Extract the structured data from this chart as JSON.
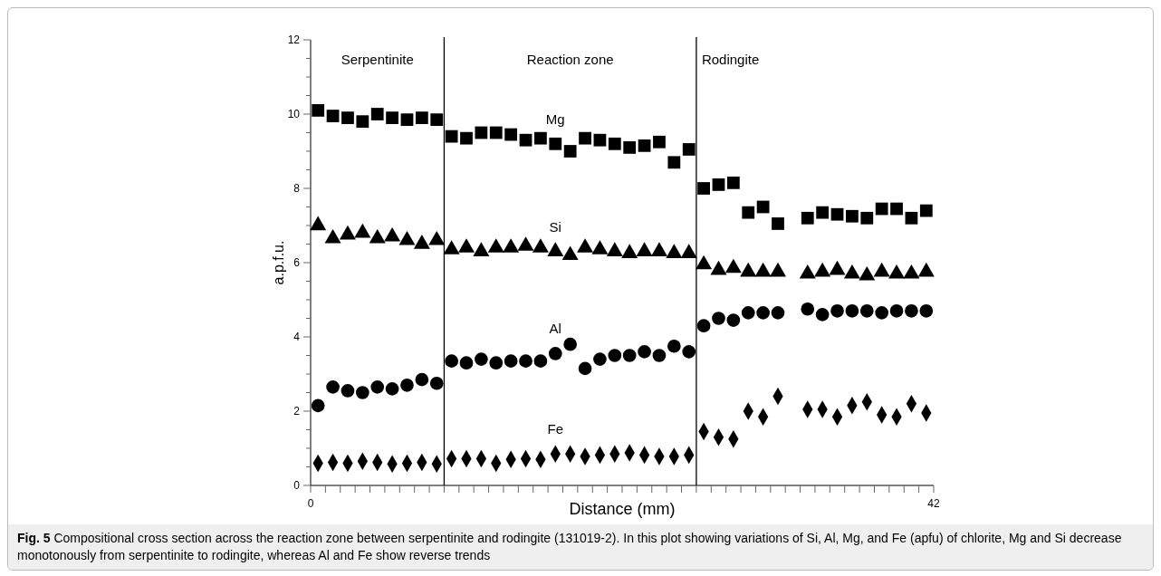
{
  "chart_data": {
    "type": "scatter",
    "xlabel": "Distance (mm)",
    "ylabel": "a.p.f.u.",
    "x": [
      0.5,
      1.5,
      2.5,
      3.5,
      4.5,
      5.5,
      6.5,
      7.5,
      8.5,
      9.5,
      10.5,
      11.5,
      12.5,
      13.5,
      14.5,
      15.5,
      16.5,
      17.5,
      18.5,
      19.5,
      20.5,
      21.5,
      22.5,
      23.5,
      24.5,
      25.5,
      26.5,
      27.5,
      28.5,
      29.5,
      30.5,
      31.5,
      33.5,
      34.5,
      35.5,
      36.5,
      37.5,
      38.5,
      39.5,
      40.5,
      41.5
    ],
    "xlim": [
      0,
      42
    ],
    "xticks": [
      0,
      {
        "value": 1,
        "label": null
      },
      {
        "value": 2,
        "label": null
      },
      {
        "value": 3,
        "label": null
      },
      {
        "value": 4,
        "label": null
      },
      {
        "value": 5,
        "label": null
      },
      {
        "value": 6,
        "label": null
      },
      {
        "value": 7,
        "label": null
      },
      {
        "value": 8,
        "label": null
      },
      {
        "value": 9,
        "label": null
      },
      {
        "value": 10,
        "label": null
      },
      {
        "value": 11,
        "label": null
      },
      {
        "value": 12,
        "label": null
      },
      {
        "value": 13,
        "label": null
      },
      {
        "value": 14,
        "label": null
      },
      {
        "value": 15,
        "label": null
      },
      {
        "value": 16,
        "label": null
      },
      {
        "value": 17,
        "label": null
      },
      {
        "value": 18,
        "label": null
      },
      {
        "value": 19,
        "label": null
      },
      {
        "value": 20,
        "label": null
      },
      {
        "value": 21,
        "label": null
      },
      {
        "value": 22,
        "label": null
      },
      {
        "value": 23,
        "label": null
      },
      {
        "value": 24,
        "label": null
      },
      {
        "value": 25,
        "label": null
      },
      {
        "value": 26,
        "label": null
      },
      {
        "value": 27,
        "label": null
      },
      {
        "value": 28,
        "label": null
      },
      {
        "value": 29,
        "label": null
      },
      {
        "value": 30,
        "label": null
      },
      {
        "value": 31,
        "label": null
      },
      {
        "value": 32,
        "label": null
      },
      {
        "value": 33,
        "label": null
      },
      {
        "value": 34,
        "label": null
      },
      {
        "value": 35,
        "label": null
      },
      {
        "value": 36,
        "label": null
      },
      {
        "value": 37,
        "label": null
      },
      {
        "value": 38,
        "label": null
      },
      {
        "value": 39,
        "label": null
      },
      {
        "value": 40,
        "label": null
      },
      {
        "value": 41,
        "label": null
      },
      42
    ],
    "ylim": [
      0,
      12
    ],
    "yticks": [
      0,
      {
        "value": 0.5,
        "label": null
      },
      {
        "value": 1,
        "label": null
      },
      {
        "value": 1.5,
        "label": null
      },
      2,
      {
        "value": 2.5,
        "label": null
      },
      {
        "value": 3,
        "label": null
      },
      {
        "value": 3.5,
        "label": null
      },
      4,
      {
        "value": 4.5,
        "label": null
      },
      {
        "value": 5,
        "label": null
      },
      {
        "value": 5.5,
        "label": null
      },
      6,
      {
        "value": 6.5,
        "label": null
      },
      {
        "value": 7,
        "label": null
      },
      {
        "value": 7.5,
        "label": null
      },
      8,
      {
        "value": 8.5,
        "label": null
      },
      {
        "value": 9,
        "label": null
      },
      {
        "value": 9.5,
        "label": null
      },
      10,
      {
        "value": 10.5,
        "label": null
      },
      {
        "value": 11,
        "label": null
      },
      {
        "value": 11.5,
        "label": null
      },
      12
    ],
    "series": [
      {
        "name": "Mg",
        "color": "#000000",
        "marker": "square",
        "values": [
          10.1,
          9.95,
          9.9,
          9.8,
          10.0,
          9.9,
          9.85,
          9.9,
          9.85,
          9.4,
          9.35,
          9.5,
          9.5,
          9.45,
          9.3,
          9.35,
          9.2,
          9.0,
          9.35,
          9.3,
          9.2,
          9.1,
          9.15,
          9.25,
          8.7,
          9.05,
          8.0,
          8.1,
          8.15,
          7.35,
          7.5,
          7.05,
          7.2,
          7.35,
          7.3,
          7.25,
          7.2,
          7.45,
          7.45,
          7.2,
          7.4
        ]
      },
      {
        "name": "Si",
        "color": "#000000",
        "marker": "triangle",
        "values": [
          7.0,
          6.65,
          6.75,
          6.8,
          6.65,
          6.7,
          6.6,
          6.5,
          6.6,
          6.35,
          6.4,
          6.3,
          6.4,
          6.4,
          6.45,
          6.4,
          6.3,
          6.2,
          6.4,
          6.35,
          6.3,
          6.25,
          6.3,
          6.3,
          6.25,
          6.25,
          5.95,
          5.8,
          5.85,
          5.75,
          5.75,
          5.75,
          5.7,
          5.75,
          5.8,
          5.7,
          5.65,
          5.75,
          5.7,
          5.7,
          5.75
        ]
      },
      {
        "name": "Al",
        "color": "#000000",
        "marker": "circle",
        "values": [
          2.15,
          2.65,
          2.55,
          2.5,
          2.65,
          2.6,
          2.7,
          2.85,
          2.75,
          3.35,
          3.3,
          3.4,
          3.3,
          3.35,
          3.35,
          3.35,
          3.55,
          3.8,
          3.15,
          3.4,
          3.5,
          3.5,
          3.6,
          3.5,
          3.75,
          3.6,
          4.3,
          4.5,
          4.45,
          4.65,
          4.65,
          4.65,
          4.75,
          4.6,
          4.7,
          4.7,
          4.7,
          4.65,
          4.7,
          4.7,
          4.7
        ]
      },
      {
        "name": "Fe",
        "color": "#000000",
        "marker": "diamond",
        "values": [
          0.6,
          0.62,
          0.6,
          0.65,
          0.62,
          0.58,
          0.6,
          0.62,
          0.58,
          0.72,
          0.72,
          0.72,
          0.6,
          0.7,
          0.72,
          0.7,
          0.85,
          0.85,
          0.78,
          0.82,
          0.85,
          0.88,
          0.82,
          0.78,
          0.78,
          0.82,
          1.45,
          1.3,
          1.25,
          2.0,
          1.85,
          2.4,
          2.05,
          2.05,
          1.85,
          2.15,
          2.25,
          1.9,
          1.85,
          2.2,
          1.95
        ]
      }
    ],
    "ref_lines": [
      {
        "axis": "x",
        "value": 9,
        "color": "#000000"
      },
      {
        "axis": "x",
        "value": 26,
        "color": "#000000"
      }
    ],
    "annotations": [
      "Serpentinite",
      "Reaction zone",
      "Rodingite",
      "Fig. 5 Compositional cross section across the reaction zone between serpentinite and rodingite (131019-2). In this plot showing variations of Si, Al, Mg, and Fe (apfu) of chlorite, Mg and Si decrease monotonously from serpentinite to rodingite, whereas Al and Fe show reverse trends"
    ]
  }
}
